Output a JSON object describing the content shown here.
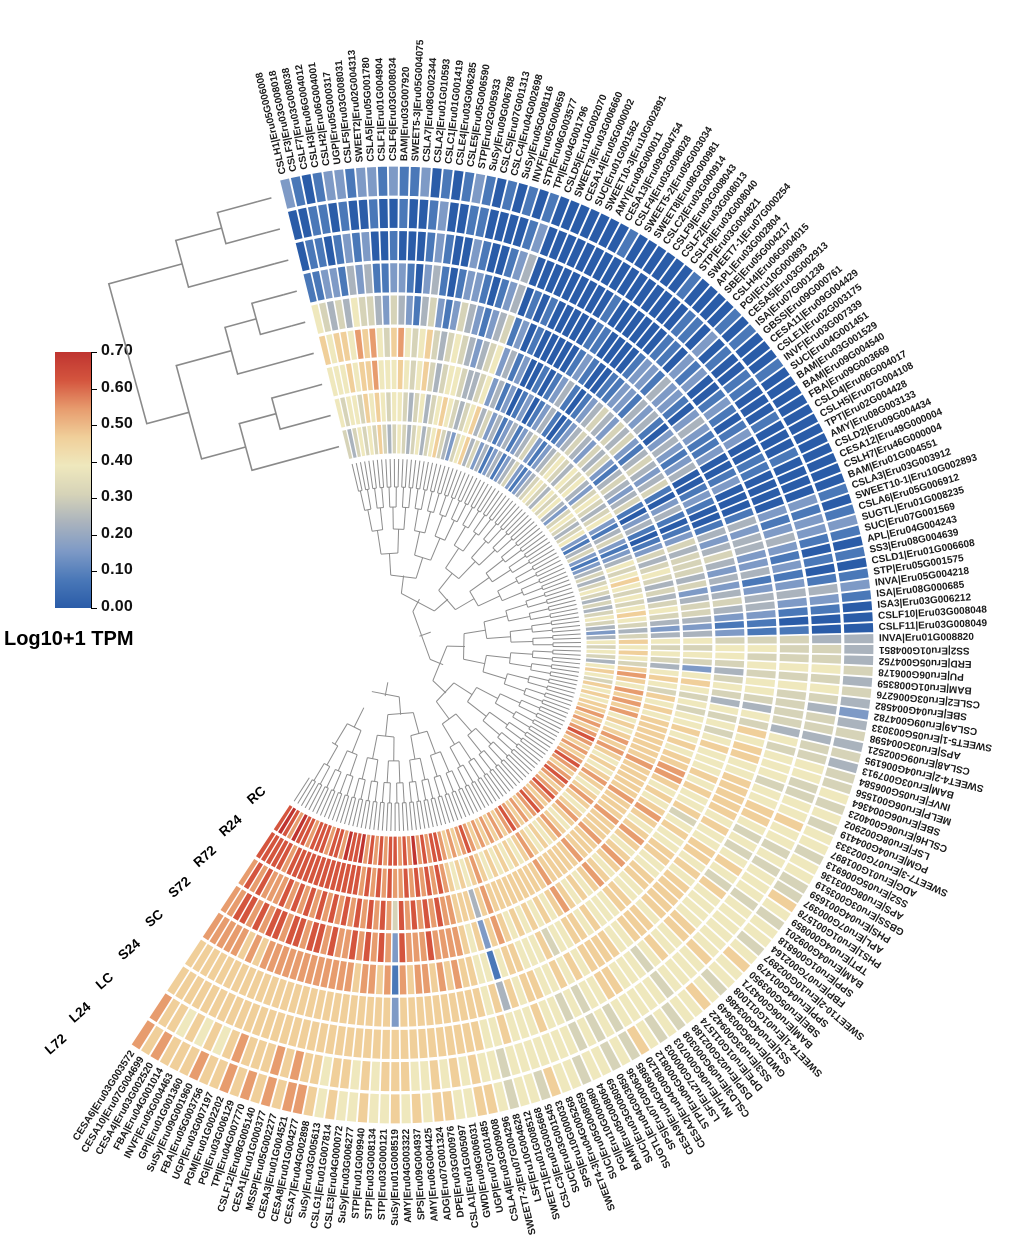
{
  "legend": {
    "title": "Log10+1 TPM",
    "ticks": [
      "0.70",
      "0.60",
      "0.50",
      "0.40",
      "0.30",
      "0.20",
      "0.10",
      "0.00"
    ],
    "gradient_top_to_bottom": [
      "#bf3430",
      "#d4553e",
      "#e79c6e",
      "#f0cf9a",
      "#efe8bd",
      "#d6d3b8",
      "#aab3bd",
      "#7e9ac6",
      "#4a78b8",
      "#2a5ca8"
    ]
  },
  "chart_data": {
    "type": "heatmap",
    "layout": "circular",
    "title": "",
    "value_label": "Log10+1 TPM",
    "value_range": [
      0.0,
      0.7
    ],
    "legend_position": "left",
    "rings_inner_to_outer": [
      "RC",
      "R24",
      "R72",
      "S72",
      "SC",
      "S24",
      "LC",
      "L24",
      "L72"
    ],
    "ring_dendrogram_merges": [
      [
        1,
        2,
        0.18
      ],
      [
        0,
        9,
        0.38
      ],
      [
        4,
        5,
        0.15
      ],
      [
        3,
        11,
        0.32
      ],
      [
        10,
        12,
        0.62
      ],
      [
        7,
        8,
        0.2
      ],
      [
        6,
        14,
        0.45
      ],
      [
        13,
        15,
        0.85
      ]
    ],
    "palette_levels": [
      "#2a5ca8",
      "#4a78b8",
      "#7e9ac6",
      "#aab3bd",
      "#d6d3b8",
      "#efe8bd",
      "#f0cf9a",
      "#e79c6e",
      "#d4553e",
      "#bf3430"
    ],
    "level_value_note": "digit 0-9 maps linearly to 0.00-0.70 Log10+1 TPM",
    "genes": [
      {
        "label": "CSLH1|Eru05G006008",
        "levels": "455651002"
      },
      {
        "label": "CSLF3|Eru03G008018",
        "levels": "345541101"
      },
      {
        "label": "CSLF7|Eru03G008038",
        "levels": "455632110"
      },
      {
        "label": "CSLH3|Eru06G004012",
        "levels": "556642011"
      },
      {
        "label": "CSLH2|Eru06G004001",
        "levels": "445531102"
      },
      {
        "label": "UGP|Eru05G000317",
        "levels": "566753212"
      },
      {
        "label": "CSLF5|Eru03G008031",
        "levels": "456642101"
      },
      {
        "label": "SWEET2|Eru02G004313",
        "levels": "667743202"
      },
      {
        "label": "CSLA5|Eru05G001780",
        "levels": "455531012"
      },
      {
        "label": "CSLF1|Eru01G004904",
        "levels": "345421001"
      },
      {
        "label": "CSLF6|Eru03G008034",
        "levels": "455642102"
      },
      {
        "label": "BAM|Eru03G007920",
        "levels": "556732011"
      },
      {
        "label": "SWEET5-3|Eru05G004075",
        "levels": "445521001"
      },
      {
        "label": "CSLA7|Eru08G002344",
        "levels": "334410002"
      },
      {
        "label": "CSLA2|Eru01G010593",
        "levels": "445532110"
      },
      {
        "label": "CSLC1|Eru01G001419",
        "levels": "556643221"
      },
      {
        "label": "CSLE4|Eru03G006285",
        "levels": "334421100"
      },
      {
        "label": "CSLE5|Eru05G006590",
        "levels": "443310001"
      },
      {
        "label": "STP|Eru02G005933",
        "levels": "554421012"
      },
      {
        "label": "SuSy|Eru09G006788",
        "levels": "665542211"
      },
      {
        "label": "CSLC5|Eru07G001313",
        "levels": "455432100"
      },
      {
        "label": "CSLC4|Eru04G002698",
        "levels": "344321001"
      },
      {
        "label": "SuSy|Eru05G008116",
        "levels": "233210000"
      },
      {
        "label": "INVF|Eru05G000659",
        "levels": "443321101"
      },
      {
        "label": "STP|Eru06G003577",
        "levels": "554432210"
      },
      {
        "label": "TPI|Eru04G001796",
        "levels": "665543321"
      },
      {
        "label": "CSLD5|Eru10G002070",
        "levels": "332210000"
      },
      {
        "label": "SWEET3|Eru03G006660",
        "levels": "443321000"
      },
      {
        "label": "CESA14|Eru05G000002",
        "levels": "221100000"
      },
      {
        "label": "SUC|Eru01G001562",
        "levels": "332211000"
      },
      {
        "label": "SWEET10-3|Eru10G002891",
        "levels": "110000000"
      },
      {
        "label": "AMY|Eru09G000011",
        "levels": "221000000"
      },
      {
        "label": "CESA13|Eru09G004754",
        "levels": "332100000"
      },
      {
        "label": "CSLF4|Eru03G008028",
        "levels": "110000001"
      },
      {
        "label": "SWEET5-2|Eru05G003034",
        "levels": "221100000"
      },
      {
        "label": "SWEET8|Eru08G000981",
        "levels": "332211100"
      },
      {
        "label": "CSLC2|Eru03G000914",
        "levels": "443321000"
      },
      {
        "label": "CSLF9|Eru03G008043",
        "levels": "221110000"
      },
      {
        "label": "CSLF2|Eru03G008013",
        "levels": "110000000"
      },
      {
        "label": "CSLF8|Eru03G008040",
        "levels": "221100000"
      },
      {
        "label": "STP|Eru03G004821",
        "levels": "332210001"
      },
      {
        "label": "SWEET7-1|Eru07G000254",
        "levels": "443311000"
      },
      {
        "label": "APL|Eru03G002804",
        "levels": "554422110"
      },
      {
        "label": "SBE|Eru05G004217",
        "levels": "443322110"
      },
      {
        "label": "CSLH4|Eru06G004015",
        "levels": "332211000"
      },
      {
        "label": "PGI|Eru10G000893",
        "levels": "554433221"
      },
      {
        "label": "CESA5|Eru03G002913",
        "levels": "443322100"
      },
      {
        "label": "ISA|Eru07G001238",
        "levels": "554432211"
      },
      {
        "label": "GBSS|Eru09G000761",
        "levels": "332211000"
      },
      {
        "label": "CESA11|Eru09G004429",
        "levels": "221100000"
      },
      {
        "label": "CSLE1|Eru02G003175",
        "levels": "443322110"
      },
      {
        "label": "INVF|Eru03G007339",
        "levels": "554433211"
      },
      {
        "label": "SUC|Eru04G001451",
        "levels": "443322100"
      },
      {
        "label": "BAM|Eru03G001529",
        "levels": "332211000"
      },
      {
        "label": "BAM|Eru09G004540",
        "levels": "443321100"
      },
      {
        "label": "FBA|Eru09G003669",
        "levels": "554432210"
      },
      {
        "label": "CSLD4|Eru06G004017",
        "levels": "221100000"
      },
      {
        "label": "CSLH5|Eru07G004108",
        "levels": "110000000"
      },
      {
        "label": "TPT|Eru02G004428",
        "levels": "332211100"
      },
      {
        "label": "AMY|Eru08G003133",
        "levels": "443322110"
      },
      {
        "label": "CSLD2|Eru09G004434",
        "levels": "221110000"
      },
      {
        "label": "CESA12|Eru49G000004",
        "levels": "110000000"
      },
      {
        "label": "CSLH7|Eru46G000004",
        "levels": "221100000"
      },
      {
        "label": "BAM|Eru01G004551",
        "levels": "332211000"
      },
      {
        "label": "CSLA3|Eru03G003912",
        "levels": "454433221"
      },
      {
        "label": "SWEET10-1|Eru10G002893",
        "levels": "343322110"
      },
      {
        "label": "CSLA6|Eru05G006912",
        "levels": "454433221"
      },
      {
        "label": "SUGTL|Eru01G008235",
        "levels": "565443322"
      },
      {
        "label": "SUC|Eru07G001569",
        "levels": "454432211"
      },
      {
        "label": "APL|Eru04G004243",
        "levels": "343322100"
      },
      {
        "label": "SS3|Eru08G004639",
        "levels": "454433211"
      },
      {
        "label": "CSLD1|Eru01G006608",
        "levels": "343221100"
      },
      {
        "label": "STP|Eru05G001575",
        "levels": "454332211"
      },
      {
        "label": "INVA|Eru05G004218",
        "levels": "565443332"
      },
      {
        "label": "ISA|Eru08G000685",
        "levels": "454433221"
      },
      {
        "label": "ISA3|Eru03G006212",
        "levels": "343322110"
      },
      {
        "label": "CSLF10|Eru03G008048",
        "levels": "232211000"
      },
      {
        "label": "CSLF11|Eru03G008049",
        "levels": "343321100"
      },
      {
        "label": "INVA|Eru01G008820",
        "levels": "565544433"
      },
      {
        "label": "SS2|Eru01G004851",
        "levels": "454455443"
      },
      {
        "label": "ERD|Eru05G004752",
        "levels": "565554443"
      },
      {
        "label": "PU|Eru06G006178",
        "levels": "454445554"
      },
      {
        "label": "BAM|Eru01G008359",
        "levels": "343234443"
      },
      {
        "label": "CSLE2|Eru03G006276",
        "levels": "565545554"
      },
      {
        "label": "SBE|Eru04G004582",
        "levels": "676655443"
      },
      {
        "label": "CSLA9|Eru09G004782",
        "levels": "565544432"
      },
      {
        "label": "SWEET5-1|Eru05G003033",
        "levels": "454433443"
      },
      {
        "label": "APS|Eru03G004598",
        "levels": "676555444"
      },
      {
        "label": "CSLA8|Eru09G002521",
        "levels": "565444333"
      },
      {
        "label": "SWEET4-2|Eru04G006195",
        "levels": "676556544"
      },
      {
        "label": "BAM|Eru03G007913",
        "levels": "565545443"
      },
      {
        "label": "INVF|Eru05G006584",
        "levels": "676656554"
      },
      {
        "label": "MELP|Eru06G001556",
        "levels": "656566554"
      },
      {
        "label": "SBE|Eru06G004364",
        "levels": "766655545"
      },
      {
        "label": "CSLH6|Eru06G004023",
        "levels": "656555444"
      },
      {
        "label": "LSF|Eru08G002902",
        "levels": "766656555"
      },
      {
        "label": "PGM|Eru04G004419",
        "levels": "676666554"
      },
      {
        "label": "SWEET7-3|Eru07G002333",
        "levels": "766756665"
      },
      {
        "label": "ADG|Eru01G001897",
        "levels": "877766655"
      },
      {
        "label": "SS2|Eru05G006913",
        "levels": "766656554"
      },
      {
        "label": "APS|Eru08G003136",
        "levels": "656555445"
      },
      {
        "label": "GBSS|Eru03G003519",
        "levels": "766666555"
      },
      {
        "label": "PHS|Eru04G001659",
        "levels": "656545444"
      },
      {
        "label": "APL|Eru07G000397",
        "levels": "766655554"
      },
      {
        "label": "PHS1|Eru01G001578",
        "levels": "877766656"
      },
      {
        "label": "TPT|Eru04G000859",
        "levels": "766656555"
      },
      {
        "label": "BAM|Eru04G009201",
        "levels": "656555444"
      },
      {
        "label": "SPP|Eru01G006818",
        "levels": "766666655"
      },
      {
        "label": "FBP|Eru07G002164",
        "levels": "877765555"
      },
      {
        "label": "SWEET10-2|Eru10G002897",
        "levels": "766656554"
      },
      {
        "label": "SPP|Eru04G001479",
        "levels": "656556555"
      },
      {
        "label": "SBE|Eru05G003950",
        "levels": "766666556"
      },
      {
        "label": "BAM|Eru06G004371",
        "levels": "877766655"
      },
      {
        "label": "SWEET4-1|Eru01G011008",
        "levels": "766656665"
      },
      {
        "label": "SS1|Eru04G003486",
        "levels": "656555554"
      },
      {
        "label": "GWD|Eru09G003649",
        "levels": "766666555"
      },
      {
        "label": "SS3|Eru03G009422",
        "levels": "877766656"
      },
      {
        "label": "DPE|Eru01G011574",
        "levels": "766656555"
      },
      {
        "label": "DSP|Eru02G002188",
        "levels": "656555445"
      },
      {
        "label": "CSLD3|Eru09G000308",
        "levels": "766655554"
      },
      {
        "label": "INVF|Eru06G000703",
        "levels": "656566555"
      },
      {
        "label": "LSF|Eru27G000003",
        "levels": "766656554"
      },
      {
        "label": "STP|Eru06G000812",
        "levels": "877766655"
      },
      {
        "label": "CESA2|Eru04G008120",
        "levels": "766666656"
      },
      {
        "label": "CESA9|Eru04G006985",
        "levels": "656555544"
      },
      {
        "label": "SPS|Eru07G000636",
        "levels": "766656555"
      },
      {
        "label": "SUGTL|Eru04G003850",
        "levels": "656545444"
      },
      {
        "label": "SUC|Eru03G008059",
        "levels": "766666555"
      },
      {
        "label": "BAM|Eru05G008064",
        "levels": "656555445"
      },
      {
        "label": "PGI|Eru10G000980",
        "levels": "766655554"
      },
      {
        "label": "SUC|Eru05G008059",
        "levels": "656556555"
      },
      {
        "label": "SWEET4-3|Eru04G005268",
        "levels": "766666655"
      },
      {
        "label": "SPS|Eru10G000033",
        "levels": "877765556"
      },
      {
        "label": "SUC|Eru03G001545",
        "levels": "766656554"
      },
      {
        "label": "CSLC3|Eru03G005668",
        "levels": "653213555"
      },
      {
        "label": "SWEET1|Eru01G008512",
        "levels": "766656655"
      },
      {
        "label": "LSF|Eru10G004628",
        "levels": "656555544"
      },
      {
        "label": "SWEET7-2|Eru07G004296",
        "levels": "766666555"
      },
      {
        "label": "CSLA4|Eru03G009008",
        "levels": "877766656"
      },
      {
        "label": "UGP|Eru07G001485",
        "levels": "887776666"
      },
      {
        "label": "GWD|Eru09G006031",
        "levels": "778766655"
      },
      {
        "label": "CSLA1|Eru01G005097",
        "levels": "887776665"
      },
      {
        "label": "DPE|Eru03G000976",
        "levels": "778866656"
      },
      {
        "label": "ADG|Eru07G001324",
        "levels": "987776666"
      },
      {
        "label": "AMY|Eru06G004425",
        "levels": "778776655"
      },
      {
        "label": "SPS|Eru09G004937",
        "levels": "887766656"
      },
      {
        "label": "AMY|Eru04G003322",
        "levels": "778876665"
      },
      {
        "label": "SuSy|Eru01G008519",
        "levels": "874212666"
      },
      {
        "label": "STP|Eru03G000121",
        "levels": "887776665"
      },
      {
        "label": "STP|Eru03G008134",
        "levels": "778866655"
      },
      {
        "label": "STP|Eru01G009940",
        "levels": "887776666"
      },
      {
        "label": "SuSy|Eru03G006277",
        "levels": "778876655"
      },
      {
        "label": "CSLE3|Eru04G000072",
        "levels": "887766665"
      },
      {
        "label": "CSLG1|Eru01G007814",
        "levels": "778876666"
      },
      {
        "label": "SuSy|Eru03G005613",
        "levels": "987776655"
      },
      {
        "label": "CESA7|Eru04G002898",
        "levels": "888776666"
      },
      {
        "label": "CESA8|Eru01G004277",
        "levels": "887876667"
      },
      {
        "label": "CESA3|Eru01G004521",
        "levels": "988776677"
      },
      {
        "label": "MSSP|Eru05G002277",
        "levels": "787876666"
      },
      {
        "label": "CESA1|Eru01G000377",
        "levels": "888876677"
      },
      {
        "label": "CSLF12|Eru08G005140",
        "levels": "887776666"
      },
      {
        "label": "TPI|Eru04G007770",
        "levels": "788876667"
      },
      {
        "label": "PGI|Eru03G006129",
        "levels": "887876666"
      },
      {
        "label": "PGM|Eru01G002202",
        "levels": "888776677"
      },
      {
        "label": "UGP|Eru03G007197",
        "levels": "887876666"
      },
      {
        "label": "FBA|Eru05G003756",
        "levels": "788866656"
      },
      {
        "label": "SuSy|Eru09G001960",
        "levels": "887776667"
      },
      {
        "label": "GPI|Eru01G001360",
        "levels": "877866656"
      },
      {
        "label": "INVF|Eru05G004463",
        "levels": "987776666"
      },
      {
        "label": "FBA|Eru04G001014",
        "levels": "788876656"
      },
      {
        "label": "CESA4|Eru03G002520",
        "levels": "887876667"
      },
      {
        "label": "CESA10|Eru07G004699",
        "levels": "988776666"
      },
      {
        "label": "CESA6|Eru03G003572",
        "levels": "887776677"
      }
    ]
  }
}
